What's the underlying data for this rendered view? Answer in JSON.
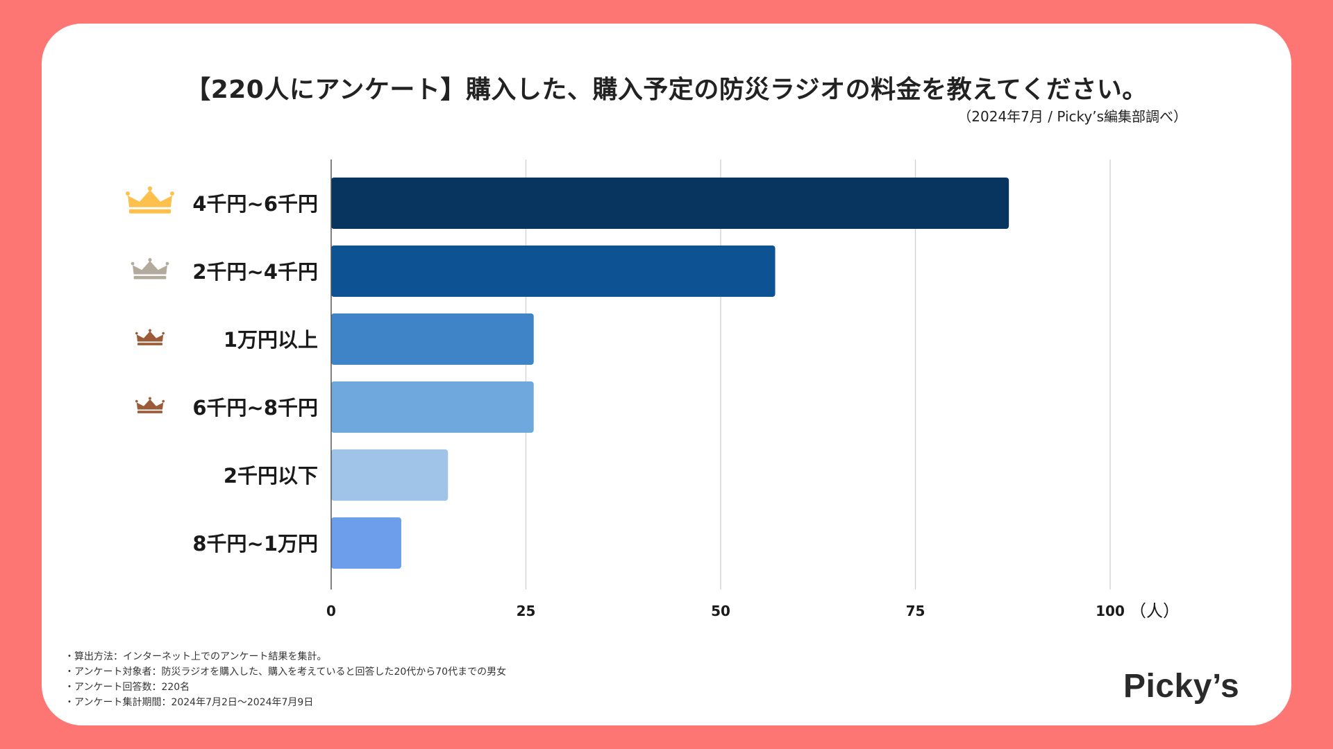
{
  "title": "【220人にアンケート】購入した、購入予定の防災ラジオの料金を教えてください。",
  "subtitle": "（2024年7月 / Picky’s編集部調べ）",
  "chart_data": {
    "type": "bar",
    "orientation": "horizontal",
    "categories": [
      "4千円~6千円",
      "2千円~4千円",
      "1万円以上",
      "6千円~8千円",
      "2千円以下",
      "8千円~1万円"
    ],
    "values": [
      87,
      57,
      26,
      26,
      15,
      9
    ],
    "colors": [
      "#07355F",
      "#0D5394",
      "#3E84C6",
      "#6FA8DC",
      "#9FC4E8",
      "#6D9EEB"
    ],
    "ranks": [
      "gold",
      "silver",
      "bronze",
      "bronze",
      "",
      ""
    ],
    "xlim": [
      0,
      100
    ],
    "xticks": [
      "0",
      "25",
      "50",
      "75",
      "100"
    ],
    "xticks_values": [
      0,
      25,
      50,
      75,
      100
    ],
    "unit": "（人）",
    "grid": true,
    "legend": "none"
  },
  "crown_colors": {
    "gold": "#FEC04D",
    "silver": "#B3AA9E",
    "bronze": "#9C5B38"
  },
  "notes": [
    "・算出方法：インターネット上でのアンケート結果を集計。",
    "・アンケート対象者：防災ラジオを購入した、購入を考えていると回答した20代から70代までの男女",
    "・アンケート回答数：220名",
    "・アンケート集計期間：2024年7月2日〜2024年7月9日"
  ],
  "logo": "Picky’s"
}
